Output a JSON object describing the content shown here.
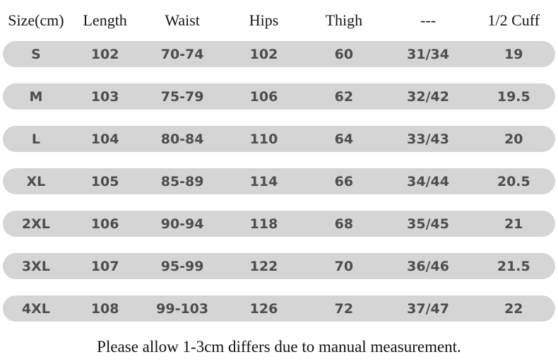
{
  "chart_data": {
    "type": "table",
    "columns": [
      "Size(cm)",
      "Length",
      "Waist",
      "Hips",
      "Thigh",
      "---",
      "1/2 Cuff"
    ],
    "rows": [
      [
        "S",
        "102",
        "70-74",
        "102",
        "60",
        "31/34",
        "19"
      ],
      [
        "M",
        "103",
        "75-79",
        "106",
        "62",
        "32/42",
        "19.5"
      ],
      [
        "L",
        "104",
        "80-84",
        "110",
        "64",
        "33/43",
        "20"
      ],
      [
        "XL",
        "105",
        "85-89",
        "114",
        "66",
        "34/44",
        "20.5"
      ],
      [
        "2XL",
        "106",
        "90-94",
        "118",
        "68",
        "35/45",
        "21"
      ],
      [
        "3XL",
        "107",
        "95-99",
        "122",
        "70",
        "36/46",
        "21.5"
      ],
      [
        "4XL",
        "108",
        "99-103",
        "126",
        "72",
        "37/47",
        "22"
      ]
    ],
    "note": "Please allow 1-3cm differs due to manual measurement.",
    "layout_hints": {
      "row_style": "rounded-pill",
      "grid": false
    }
  },
  "colors": {
    "row_background": "#d5d5d5",
    "data_text": "#4d4d4d",
    "header_text": "#151515",
    "page_background": "#ffffff"
  }
}
